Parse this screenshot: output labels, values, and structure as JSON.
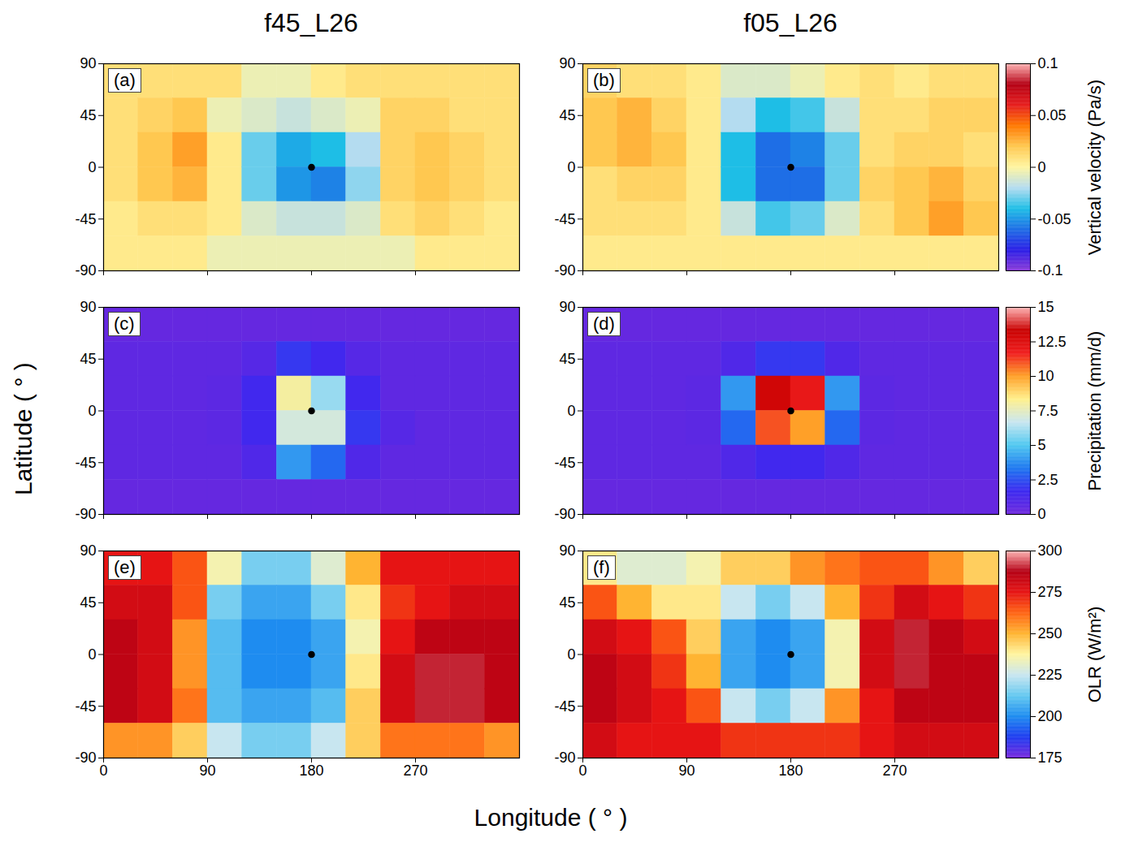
{
  "figure": {
    "column_titles": [
      "f45_L26",
      "f05_L26"
    ],
    "x_label": "Longitude ( ° )",
    "y_label": "Latitude ( ° )"
  },
  "chart_data": [
    {
      "type": "heatmap",
      "colorbar": {
        "label": "Vertical velocity (Pa/s)",
        "range": [
          -0.1,
          0.1
        ],
        "ticks": [
          -0.1,
          -0.05,
          0,
          0.05,
          0.1
        ],
        "colors": [
          "#8a3ad8",
          "#2a1ee6",
          "#1e6ee6",
          "#1ebee6",
          "#b4dcf0",
          "#fff5a0",
          "#ffc850",
          "#ff7800",
          "#e61e1e",
          "#b40014",
          "#ffb4b4"
        ]
      },
      "panels": [
        {
          "label": "(a)",
          "xlim": [
            0,
            360
          ],
          "ylim": [
            -90,
            90
          ],
          "xticks": [
            0,
            90,
            180,
            270
          ],
          "yticks": [
            -90,
            -45,
            0,
            45,
            90
          ],
          "tick_labels": "y",
          "marker": "circle",
          "marker_point": {
            "x": 180,
            "y": 0
          },
          "lon_edges": [
            0,
            30,
            60,
            90,
            120,
            150,
            180,
            210,
            240,
            270,
            300,
            330,
            360
          ],
          "lat_edges": [
            90,
            60,
            30,
            0,
            -30,
            -60,
            -90
          ],
          "cells": [
            [
              0.01,
              0.01,
              0.01,
              0.01,
              -0.005,
              -0.005,
              0.005,
              0.01,
              0.01,
              0.01,
              0.01,
              0.01
            ],
            [
              0.01,
              0.015,
              0.02,
              -0.005,
              -0.01,
              -0.015,
              -0.01,
              -0.005,
              0.015,
              0.015,
              0.01,
              0.01
            ],
            [
              0.01,
              0.02,
              0.03,
              0.005,
              -0.03,
              -0.045,
              -0.04,
              -0.02,
              0.015,
              0.02,
              0.015,
              0.01
            ],
            [
              0.01,
              0.02,
              0.025,
              0.005,
              -0.03,
              -0.05,
              -0.055,
              -0.025,
              0.015,
              0.02,
              0.015,
              0.01
            ],
            [
              0.005,
              0.01,
              0.01,
              0.005,
              -0.01,
              -0.015,
              -0.015,
              -0.01,
              0.01,
              0.015,
              0.01,
              0.005
            ],
            [
              0.005,
              0.005,
              0.005,
              -0.005,
              -0.005,
              -0.005,
              -0.005,
              -0.005,
              -0.005,
              0.005,
              0.005,
              0.005
            ]
          ]
        },
        {
          "label": "(b)",
          "xlim": [
            0,
            360
          ],
          "ylim": [
            -90,
            90
          ],
          "xticks": [
            0,
            90,
            180,
            270
          ],
          "yticks": [
            -90,
            -45,
            0,
            45,
            90
          ],
          "tick_labels": "y",
          "marker": "circle",
          "marker_point": {
            "x": 180,
            "y": 0
          },
          "lon_edges": [
            0,
            30,
            60,
            90,
            120,
            150,
            180,
            210,
            240,
            270,
            300,
            330,
            360
          ],
          "lat_edges": [
            90,
            60,
            30,
            0,
            -30,
            -60,
            -90
          ],
          "cells": [
            [
              0.015,
              0.01,
              0.01,
              0.005,
              -0.01,
              -0.01,
              -0.005,
              0.005,
              0.01,
              0.005,
              0.01,
              0.01
            ],
            [
              0.02,
              0.025,
              0.015,
              0.005,
              -0.02,
              -0.04,
              -0.035,
              -0.015,
              0.01,
              0.01,
              0.015,
              0.015
            ],
            [
              0.02,
              0.025,
              0.02,
              0.005,
              -0.04,
              -0.06,
              -0.055,
              -0.03,
              0.01,
              0.015,
              0.015,
              0.01
            ],
            [
              0.01,
              0.015,
              0.015,
              0.005,
              -0.04,
              -0.06,
              -0.06,
              -0.03,
              0.015,
              0.02,
              0.025,
              0.015
            ],
            [
              0.01,
              0.01,
              0.01,
              0.005,
              -0.015,
              -0.035,
              -0.03,
              -0.01,
              0.01,
              0.02,
              0.03,
              0.02
            ],
            [
              0.005,
              0.005,
              0.005,
              0.005,
              0.005,
              0.005,
              0.005,
              0.005,
              0.005,
              0.005,
              0.005,
              0.005
            ]
          ]
        }
      ]
    },
    {
      "type": "heatmap",
      "colorbar": {
        "label": "Precipitation (mm/d)",
        "range": [
          0,
          15
        ],
        "ticks": [
          0,
          2.5,
          5,
          7.5,
          10,
          12.5,
          15
        ],
        "colors": [
          "#6e28dc",
          "#3c28f0",
          "#1e78f0",
          "#50c8f0",
          "#c8e6f0",
          "#fff08c",
          "#ffa028",
          "#f01e1e",
          "#c80000",
          "#ffb4b4"
        ]
      },
      "panels": [
        {
          "label": "(c)",
          "xlim": [
            0,
            360
          ],
          "ylim": [
            -90,
            90
          ],
          "xticks": [
            0,
            90,
            180,
            270
          ],
          "yticks": [
            -90,
            -45,
            0,
            45,
            90
          ],
          "tick_labels": "y",
          "marker": "circle",
          "marker_point": {
            "x": 180,
            "y": 0
          },
          "lon_edges": [
            0,
            30,
            60,
            90,
            120,
            150,
            180,
            210,
            240,
            270,
            300,
            330,
            360
          ],
          "lat_edges": [
            90,
            60,
            30,
            0,
            -30,
            -60,
            -90
          ],
          "cells": [
            [
              0.3,
              0.3,
              0.3,
              0.3,
              0.3,
              0.3,
              0.3,
              0.3,
              0.3,
              0.3,
              0.3,
              0.3
            ],
            [
              0.5,
              0.5,
              0.5,
              0.5,
              0.8,
              2,
              1.5,
              0.8,
              0.5,
              0.5,
              0.5,
              0.5
            ],
            [
              0.5,
              0.5,
              0.5,
              0.6,
              1.5,
              8,
              6,
              1.5,
              0.5,
              0.5,
              0.5,
              0.5
            ],
            [
              0.5,
              0.5,
              0.5,
              0.6,
              1.5,
              7,
              7,
              2,
              0.8,
              0.5,
              0.5,
              0.5
            ],
            [
              0.5,
              0.5,
              0.5,
              0.5,
              1,
              4,
              3,
              1,
              0.5,
              0.5,
              0.5,
              0.5
            ],
            [
              0.3,
              0.3,
              0.3,
              0.3,
              0.3,
              0.3,
              0.3,
              0.3,
              0.3,
              0.3,
              0.3,
              0.3
            ]
          ]
        },
        {
          "label": "(d)",
          "xlim": [
            0,
            360
          ],
          "ylim": [
            -90,
            90
          ],
          "xticks": [
            0,
            90,
            180,
            270
          ],
          "yticks": [
            -90,
            -45,
            0,
            45,
            90
          ],
          "tick_labels": "y",
          "marker": "circle",
          "marker_point": {
            "x": 180,
            "y": 0
          },
          "lon_edges": [
            0,
            30,
            60,
            90,
            120,
            150,
            180,
            210,
            240,
            270,
            300,
            330,
            360
          ],
          "lat_edges": [
            90,
            60,
            30,
            0,
            -30,
            -60,
            -90
          ],
          "cells": [
            [
              0.3,
              0.3,
              0.3,
              0.3,
              0.3,
              0.3,
              0.3,
              0.3,
              0.3,
              0.3,
              0.3,
              0.3
            ],
            [
              0.5,
              0.5,
              0.5,
              0.5,
              1,
              2,
              2,
              1,
              0.5,
              0.5,
              0.5,
              0.5
            ],
            [
              0.5,
              0.5,
              0.5,
              0.6,
              4,
              13,
              12,
              4,
              0.6,
              0.5,
              0.5,
              0.5
            ],
            [
              0.5,
              0.5,
              0.5,
              0.6,
              3,
              11,
              10,
              3,
              0.6,
              0.5,
              0.5,
              0.5
            ],
            [
              0.5,
              0.5,
              0.5,
              0.5,
              1,
              1.5,
              1.5,
              1,
              0.5,
              0.5,
              0.5,
              0.5
            ],
            [
              0.3,
              0.3,
              0.3,
              0.3,
              0.3,
              0.3,
              0.3,
              0.3,
              0.3,
              0.3,
              0.3,
              0.3
            ]
          ]
        }
      ]
    },
    {
      "type": "heatmap",
      "colorbar": {
        "label": "OLR (W/m²)",
        "range": [
          175,
          300
        ],
        "ticks": [
          175,
          200,
          225,
          250,
          275,
          300
        ],
        "colors": [
          "#7828dc",
          "#1e3cf0",
          "#1e8cf0",
          "#64c8f0",
          "#c8e6f0",
          "#fff5a0",
          "#ffb432",
          "#ff6414",
          "#e61414",
          "#b40014",
          "#ffb4b4"
        ]
      },
      "panels": [
        {
          "label": "(e)",
          "xlim": [
            0,
            360
          ],
          "ylim": [
            -90,
            90
          ],
          "xticks": [
            0,
            90,
            180,
            270
          ],
          "yticks": [
            -90,
            -45,
            0,
            45,
            90
          ],
          "tick_labels": true,
          "marker": "circle",
          "marker_point": {
            "x": 180,
            "y": 0
          },
          "lon_edges": [
            0,
            30,
            60,
            90,
            120,
            150,
            180,
            210,
            240,
            270,
            300,
            330,
            360
          ],
          "lat_edges": [
            90,
            60,
            30,
            0,
            -30,
            -60,
            -90
          ],
          "cells": [
            [
              275,
              275,
              265,
              235,
              215,
              215,
              230,
              250,
              275,
              275,
              275,
              275
            ],
            [
              280,
              280,
              265,
              215,
              205,
              205,
              215,
              240,
              270,
              275,
              280,
              280
            ],
            [
              285,
              280,
              255,
              210,
              200,
              200,
              205,
              235,
              275,
              285,
              285,
              285
            ],
            [
              285,
              280,
              255,
              210,
              200,
              200,
              205,
              240,
              280,
              290,
              290,
              285
            ],
            [
              285,
              280,
              260,
              210,
              205,
              205,
              210,
              245,
              280,
              290,
              290,
              285
            ],
            [
              255,
              255,
              245,
              225,
              215,
              215,
              225,
              245,
              260,
              260,
              260,
              255
            ]
          ]
        },
        {
          "label": "(f)",
          "xlim": [
            0,
            360
          ],
          "ylim": [
            -90,
            90
          ],
          "xticks": [
            0,
            90,
            180,
            270
          ],
          "yticks": [
            -90,
            -45,
            0,
            45,
            90
          ],
          "tick_labels": true,
          "marker": "circle",
          "marker_point": {
            "x": 180,
            "y": 0
          },
          "lon_edges": [
            0,
            30,
            60,
            90,
            120,
            150,
            180,
            210,
            240,
            270,
            300,
            330,
            360
          ],
          "lat_edges": [
            90,
            60,
            30,
            0,
            -30,
            -60,
            -90
          ],
          "cells": [
            [
              240,
              230,
              230,
              235,
              245,
              245,
              255,
              260,
              265,
              265,
              255,
              245
            ],
            [
              265,
              250,
              240,
              240,
              225,
              215,
              225,
              250,
              270,
              280,
              275,
              270
            ],
            [
              280,
              275,
              265,
              245,
              205,
              200,
              205,
              235,
              280,
              290,
              285,
              280
            ],
            [
              285,
              280,
              270,
              250,
              205,
              200,
              205,
              235,
              280,
              290,
              285,
              285
            ],
            [
              285,
              280,
              275,
              265,
              225,
              215,
              225,
              255,
              275,
              285,
              285,
              285
            ],
            [
              280,
              275,
              275,
              275,
              270,
              270,
              270,
              270,
              275,
              280,
              280,
              280
            ]
          ]
        }
      ]
    }
  ]
}
